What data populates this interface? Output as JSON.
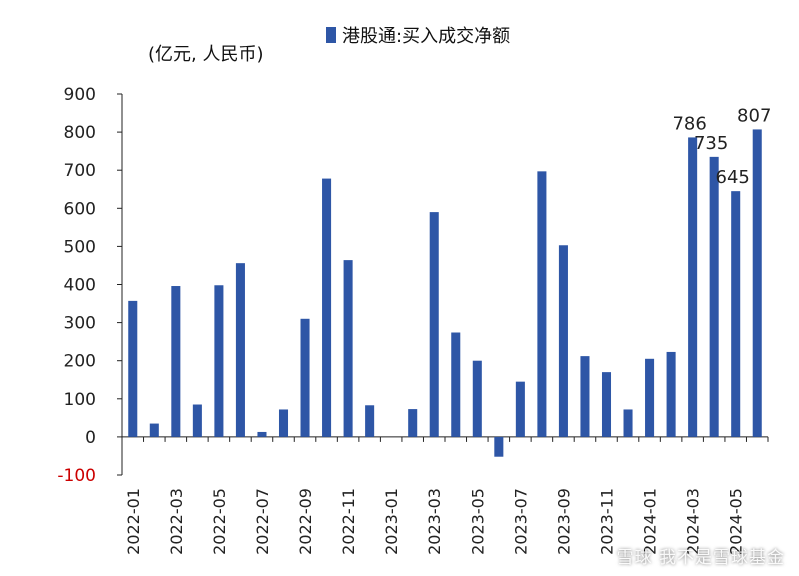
{
  "chart_data": {
    "type": "bar",
    "legend": "港股通:买入成交净额",
    "unit_label": "(亿元,  人民币)",
    "categories": [
      "2022-01",
      "2022-02",
      "2022-03",
      "2022-04",
      "2022-05",
      "2022-06",
      "2022-07",
      "2022-08",
      "2022-09",
      "2022-10",
      "2022-11",
      "2022-12",
      "2023-01",
      "2023-02",
      "2023-03",
      "2023-04",
      "2023-05",
      "2023-06",
      "2023-07",
      "2023-08",
      "2023-09",
      "2023-10",
      "2023-11",
      "2023-12",
      "2024-01",
      "2024-02",
      "2024-03",
      "2024-04",
      "2024-05",
      "2024-06"
    ],
    "x_tick_labels": [
      "2022-01",
      "2022-03",
      "2022-05",
      "2022-07",
      "2022-09",
      "2022-11",
      "2023-01",
      "2023-03",
      "2023-05",
      "2023-07",
      "2023-09",
      "2023-11",
      "2024-01",
      "2024-03",
      "2024-05"
    ],
    "values": [
      357,
      35,
      396,
      85,
      398,
      456,
      13,
      72,
      310,
      678,
      464,
      83,
      0,
      73,
      590,
      274,
      200,
      -52,
      145,
      697,
      503,
      212,
      170,
      72,
      205,
      223,
      786,
      735,
      645,
      807
    ],
    "data_labels": {
      "26": "786",
      "27": "735",
      "28": "645",
      "29": "807"
    },
    "y_ticks": [
      -100,
      0,
      100,
      200,
      300,
      400,
      500,
      600,
      700,
      800,
      900
    ],
    "ylim": [
      -100,
      900
    ],
    "bar_color": "#2e56a6",
    "negative_tick_color": "#cc0000",
    "legend_position": "top",
    "grid": false
  },
  "watermark": "雪球  我不是雪球基金"
}
